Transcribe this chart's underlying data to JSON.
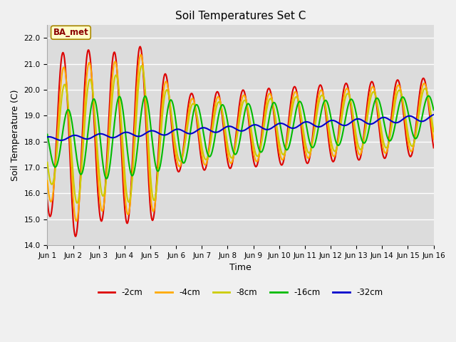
{
  "title": "Soil Temperatures Set C",
  "xlabel": "Time",
  "ylabel": "Soil Temperature (C)",
  "ylim": [
    14.0,
    22.5
  ],
  "xlim": [
    0,
    15
  ],
  "x_tick_labels": [
    "Jun 1",
    "Jun 2",
    "Jun 3",
    "Jun 4",
    "Jun 5",
    "Jun 6",
    "Jun 7",
    "Jun 8",
    "Jun 9",
    "Jun 10",
    "Jun 11",
    "Jun 12",
    "Jun 13",
    "Jun 14",
    "Jun 15",
    "Jun 16"
  ],
  "legend_labels": [
    "-2cm",
    "-4cm",
    "-8cm",
    "-16cm",
    "-32cm"
  ],
  "colors": [
    "#dd0000",
    "#ffaa00",
    "#cccc00",
    "#00bb00",
    "#0000cc"
  ],
  "annotation_text": "BA_met",
  "fig_bg": "#f0f0f0",
  "ax_bg": "#dcdcdc",
  "n_points": 720
}
